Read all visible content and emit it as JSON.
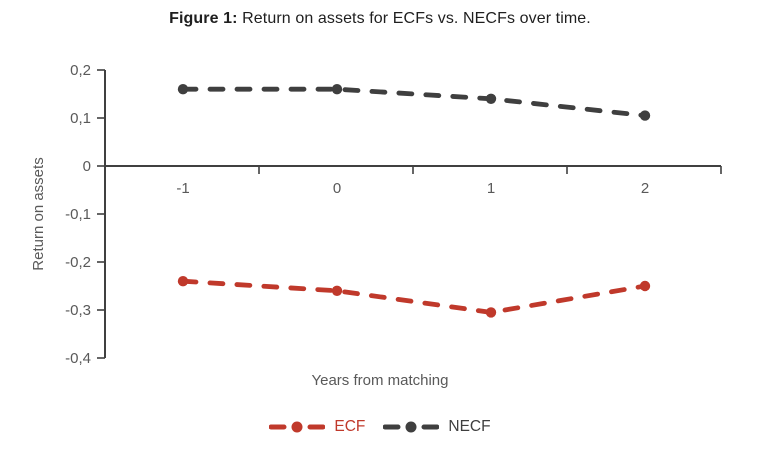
{
  "title": {
    "prefix": "Figure 1:",
    "text": " Return on assets for ECFs vs. NECFs over time."
  },
  "chart_data": {
    "type": "line",
    "title": "Figure 1: Return on assets for ECFs vs. NECFs over time.",
    "x": [
      -1,
      0,
      1,
      2
    ],
    "xtick_labels": [
      "-1",
      "0",
      "1",
      "2"
    ],
    "xlabel": "Years from matching",
    "ylabel": "Return on assets",
    "ylim": [
      -0.4,
      0.2
    ],
    "ytick_values": [
      0.2,
      0.1,
      0,
      -0.1,
      -0.2,
      -0.3,
      -0.4
    ],
    "ytick_labels": [
      "0,2",
      "0,1",
      "0",
      "-0,1",
      "-0,2",
      "-0,3",
      "-0,4"
    ],
    "grid": false,
    "legend_position": "bottom",
    "line_style": "dashed",
    "marker": "circle",
    "series": [
      {
        "name": "ECF",
        "color": "#c0392b",
        "values": [
          -0.24,
          -0.26,
          -0.305,
          -0.25
        ]
      },
      {
        "name": "NECF",
        "color": "#3f3f3f",
        "values": [
          0.16,
          0.16,
          0.14,
          0.105
        ]
      }
    ],
    "axis_color": "#404040"
  }
}
